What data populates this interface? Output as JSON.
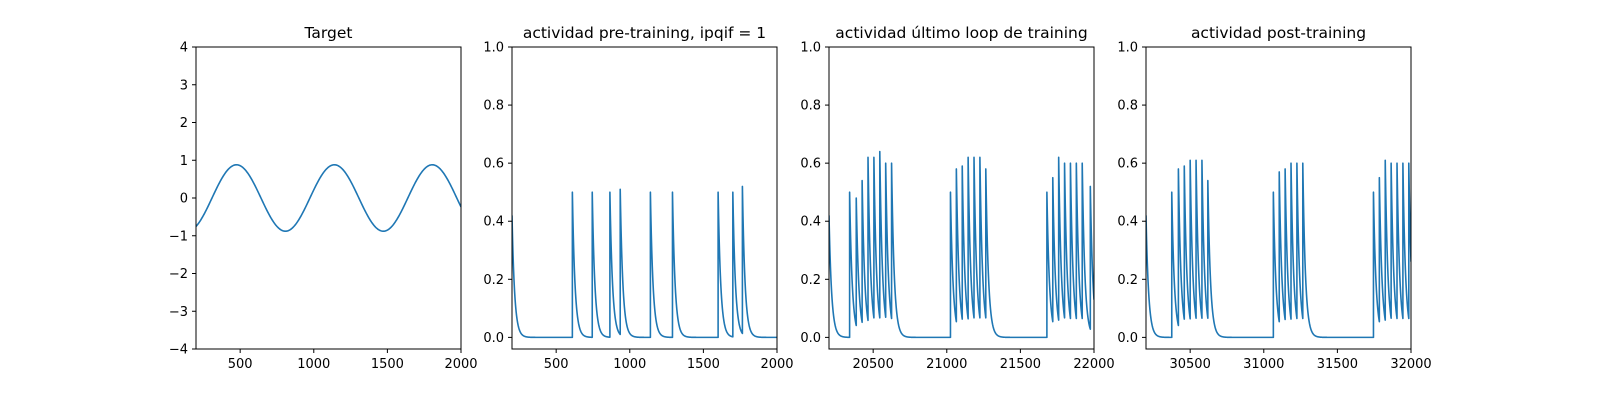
{
  "chart_data": [
    {
      "type": "line",
      "title": "Target",
      "xlim": [
        200,
        2000
      ],
      "ylim": [
        -4,
        4
      ],
      "xticks": [
        500,
        1000,
        1500,
        2000
      ],
      "yticks": [
        -4,
        -3,
        -2,
        -1,
        0,
        1,
        2,
        3,
        4
      ],
      "xtick_labels": [
        "500",
        "1000",
        "1500",
        "2000"
      ],
      "ytick_labels": [
        "−4",
        "−3",
        "−2",
        "−1",
        "0",
        "1",
        "2",
        "3",
        "4"
      ],
      "series": [
        {
          "color": "#1f77b4",
          "kind": "sine",
          "x": [
            200,
            475,
            805,
            1140,
            1470,
            1805,
            2000
          ],
          "y": [
            -0.72,
            0.9,
            -0.87,
            0.9,
            -0.87,
            0.9,
            -0.2
          ],
          "amplitude": 0.88,
          "period": 665,
          "phase_peak_x": 475
        }
      ]
    },
    {
      "type": "line",
      "title": "actividad pre-training, ipqif = 1",
      "xlim": [
        200,
        2000
      ],
      "ylim": [
        -0.04,
        1.0
      ],
      "xticks": [
        500,
        1000,
        1500,
        2000
      ],
      "yticks": [
        0.0,
        0.2,
        0.4,
        0.6,
        0.8,
        1.0
      ],
      "xtick_labels": [
        "500",
        "1000",
        "1500",
        "2000"
      ],
      "ytick_labels": [
        "0.0",
        "0.2",
        "0.4",
        "0.6",
        "0.8",
        "1.0"
      ],
      "series": [
        {
          "color": "#1f77b4",
          "kind": "spikes",
          "initial": 0.42,
          "decay_tau": 18,
          "spike_times": [
            610,
            745,
            865,
            935,
            1140,
            1290,
            1600,
            1700,
            1765
          ],
          "spike_peaks": [
            0.5,
            0.5,
            0.5,
            0.51,
            0.5,
            0.5,
            0.5,
            0.5,
            0.52
          ]
        }
      ]
    },
    {
      "type": "line",
      "title": "actividad último loop de training",
      "xlim": [
        20200,
        22000
      ],
      "ylim": [
        -0.04,
        1.0
      ],
      "xticks": [
        20500,
        21000,
        21500,
        22000
      ],
      "yticks": [
        0.0,
        0.2,
        0.4,
        0.6,
        0.8,
        1.0
      ],
      "xtick_labels": [
        "20500",
        "21000",
        "21500",
        "22000"
      ],
      "ytick_labels": [
        "0.0",
        "0.2",
        "0.4",
        "0.6",
        "0.8",
        "1.0"
      ],
      "series": [
        {
          "color": "#1f77b4",
          "kind": "spikes",
          "initial": 0.42,
          "decay_tau": 18,
          "spike_times": [
            20340,
            20385,
            20425,
            20465,
            20505,
            20545,
            20585,
            20625,
            21025,
            21065,
            21105,
            21145,
            21185,
            21225,
            21265,
            21680,
            21720,
            21760,
            21800,
            21840,
            21880,
            21920,
            21975
          ],
          "spike_peaks": [
            0.5,
            0.48,
            0.54,
            0.62,
            0.62,
            0.64,
            0.6,
            0.6,
            0.5,
            0.58,
            0.59,
            0.62,
            0.62,
            0.62,
            0.58,
            0.5,
            0.55,
            0.62,
            0.6,
            0.6,
            0.6,
            0.6,
            0.52
          ]
        }
      ]
    },
    {
      "type": "line",
      "title": "actividad post-training",
      "xlim": [
        30200,
        32000
      ],
      "ylim": [
        -0.04,
        1.0
      ],
      "xticks": [
        30500,
        31000,
        31500,
        32000
      ],
      "yticks": [
        0.0,
        0.2,
        0.4,
        0.6,
        0.8,
        1.0
      ],
      "xtick_labels": [
        "30500",
        "31000",
        "31500",
        "32000"
      ],
      "ytick_labels": [
        "0.0",
        "0.2",
        "0.4",
        "0.6",
        "0.8",
        "1.0"
      ],
      "series": [
        {
          "color": "#1f77b4",
          "kind": "spikes",
          "initial": 0.42,
          "decay_tau": 18,
          "spike_times": [
            30375,
            30420,
            30460,
            30500,
            30540,
            30580,
            30620,
            31065,
            31105,
            31145,
            31185,
            31225,
            31265,
            31745,
            31785,
            31825,
            31865,
            31905,
            31945,
            31985
          ],
          "spike_peaks": [
            0.5,
            0.58,
            0.59,
            0.61,
            0.61,
            0.61,
            0.54,
            0.5,
            0.57,
            0.58,
            0.6,
            0.6,
            0.6,
            0.5,
            0.55,
            0.61,
            0.6,
            0.6,
            0.6,
            0.6
          ]
        }
      ]
    }
  ]
}
